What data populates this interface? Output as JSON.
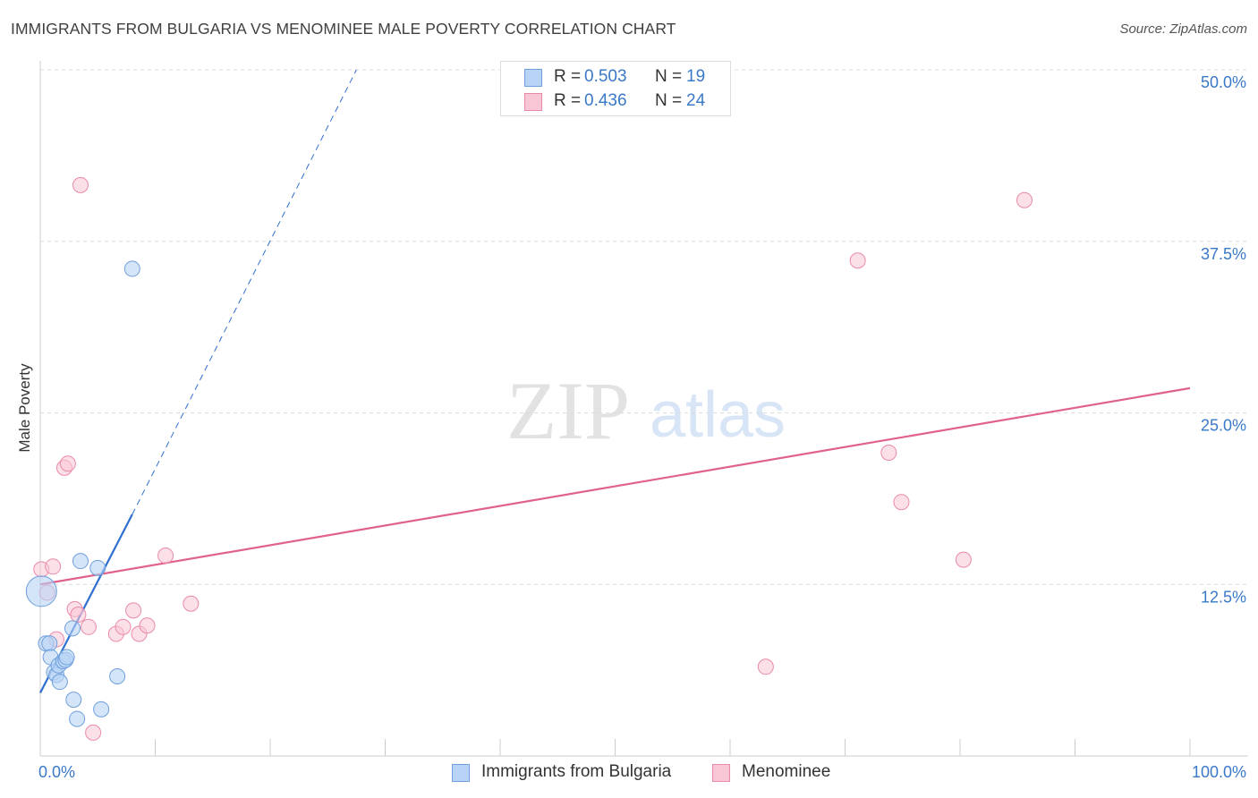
{
  "header": {
    "title": "IMMIGRANTS FROM BULGARIA VS MENOMINEE MALE POVERTY CORRELATION CHART",
    "source": "Source: ZipAtlas.com"
  },
  "watermark": {
    "zip": "ZIP",
    "atlas": "atlas"
  },
  "legend": {
    "r_label": "R =",
    "n_label": "N =",
    "series": [
      {
        "name": "Immigrants from Bulgaria",
        "r": "0.503",
        "n": "19"
      },
      {
        "name": "Menominee",
        "r": "0.436",
        "n": "24"
      }
    ]
  },
  "colors": {
    "bulgaria_fill": "#b8d3f5",
    "bulgaria_stroke": "#6f9fdc",
    "bulgaria_line": "#2f6fcf",
    "menominee_fill": "#f9c6d6",
    "menominee_stroke": "#e98aa8",
    "menominee_line": "#e0628c",
    "axis_text": "#3a78c8",
    "grid": "#dcdcdc"
  },
  "chart_data": {
    "type": "scatter",
    "title": "IMMIGRANTS FROM BULGARIA VS MENOMINEE MALE POVERTY CORRELATION CHART",
    "xlabel": "",
    "ylabel": "Male Poverty",
    "xlim": [
      0,
      100
    ],
    "ylim": [
      0,
      50
    ],
    "x_tick_labels": [
      "0.0%",
      "100.0%"
    ],
    "y_ticks": [
      12.5,
      25.0,
      37.5,
      50.0
    ],
    "y_tick_labels": [
      "12.5%",
      "25.0%",
      "37.5%",
      "50.0%"
    ],
    "grid": true,
    "legend_position": "top-center",
    "series": [
      {
        "name": "Immigrants from Bulgaria",
        "points": [
          {
            "x": 0.1,
            "y": 12.0,
            "big": true
          },
          {
            "x": 0.5,
            "y": 8.2
          },
          {
            "x": 0.8,
            "y": 8.2
          },
          {
            "x": 0.9,
            "y": 7.2
          },
          {
            "x": 1.2,
            "y": 6.1
          },
          {
            "x": 1.4,
            "y": 5.9
          },
          {
            "x": 1.6,
            "y": 6.6
          },
          {
            "x": 1.7,
            "y": 5.4
          },
          {
            "x": 2.0,
            "y": 6.9
          },
          {
            "x": 2.2,
            "y": 7.0
          },
          {
            "x": 2.3,
            "y": 7.2
          },
          {
            "x": 2.8,
            "y": 9.3
          },
          {
            "x": 2.9,
            "y": 4.1
          },
          {
            "x": 3.2,
            "y": 2.7
          },
          {
            "x": 3.5,
            "y": 14.2
          },
          {
            "x": 5.0,
            "y": 13.7
          },
          {
            "x": 5.3,
            "y": 3.4
          },
          {
            "x": 6.7,
            "y": 5.8
          },
          {
            "x": 8.0,
            "y": 35.5
          }
        ],
        "trend": {
          "x_solid": [
            0,
            8.0
          ],
          "y_solid": [
            4.6,
            17.6
          ],
          "x_dashed": [
            8.0,
            27.5
          ],
          "y_dashed": [
            17.6,
            50.0
          ]
        }
      },
      {
        "name": "Menominee",
        "points": [
          {
            "x": 0.1,
            "y": 13.6
          },
          {
            "x": 0.6,
            "y": 11.9
          },
          {
            "x": 1.1,
            "y": 13.8
          },
          {
            "x": 1.4,
            "y": 8.5
          },
          {
            "x": 2.1,
            "y": 21.0
          },
          {
            "x": 2.4,
            "y": 21.3
          },
          {
            "x": 3.0,
            "y": 10.7
          },
          {
            "x": 3.3,
            "y": 10.3
          },
          {
            "x": 3.5,
            "y": 41.6
          },
          {
            "x": 4.2,
            "y": 9.4
          },
          {
            "x": 4.6,
            "y": 1.7
          },
          {
            "x": 6.6,
            "y": 8.9
          },
          {
            "x": 7.2,
            "y": 9.4
          },
          {
            "x": 8.1,
            "y": 10.6
          },
          {
            "x": 8.6,
            "y": 8.9
          },
          {
            "x": 9.3,
            "y": 9.5
          },
          {
            "x": 10.9,
            "y": 14.6
          },
          {
            "x": 13.1,
            "y": 11.1
          },
          {
            "x": 63.1,
            "y": 6.5
          },
          {
            "x": 71.1,
            "y": 36.1
          },
          {
            "x": 73.8,
            "y": 22.1
          },
          {
            "x": 74.9,
            "y": 18.5
          },
          {
            "x": 80.3,
            "y": 14.3
          },
          {
            "x": 85.6,
            "y": 40.5
          }
        ],
        "trend": {
          "x": [
            0,
            100
          ],
          "y": [
            12.5,
            26.8
          ]
        }
      }
    ]
  },
  "bottom_legend": [
    "Immigrants from Bulgaria",
    "Menominee"
  ]
}
